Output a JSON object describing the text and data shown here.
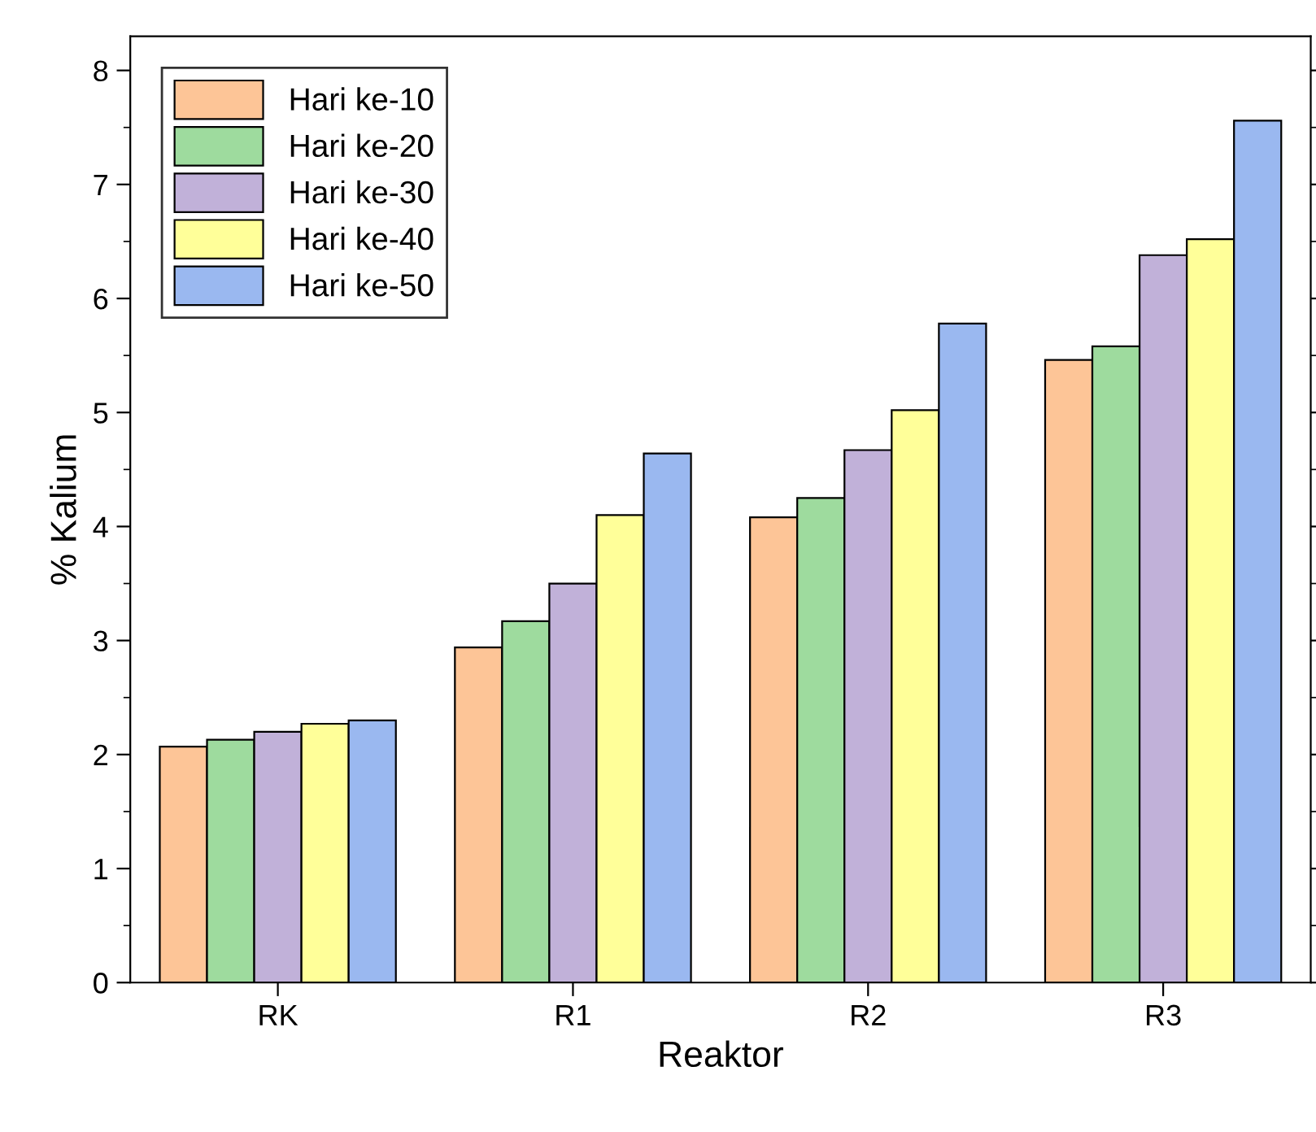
{
  "chart_data": {
    "type": "bar",
    "xlabel": "Reaktor",
    "ylabel": "% Kalium",
    "categories": [
      "RK",
      "R1",
      "R2",
      "R3"
    ],
    "series": [
      {
        "name": "Hari ke-10",
        "color": "#fdc597",
        "values": [
          2.07,
          2.94,
          4.08,
          5.46
        ]
      },
      {
        "name": "Hari ke-20",
        "color": "#9edb9e",
        "values": [
          2.13,
          3.17,
          4.25,
          5.58
        ]
      },
      {
        "name": "Hari ke-30",
        "color": "#c1b1d9",
        "values": [
          2.2,
          3.5,
          4.67,
          6.38
        ]
      },
      {
        "name": "Hari ke-40",
        "color": "#ffff99",
        "values": [
          2.27,
          4.1,
          5.02,
          6.52
        ]
      },
      {
        "name": "Hari ke-50",
        "color": "#9ab8f0",
        "values": [
          2.3,
          4.64,
          5.78,
          7.56
        ]
      }
    ],
    "ylim": [
      0,
      8.3
    ],
    "yticks": [
      0,
      1,
      2,
      3,
      4,
      5,
      6,
      7,
      8
    ],
    "grid": false,
    "legend": "top left"
  }
}
